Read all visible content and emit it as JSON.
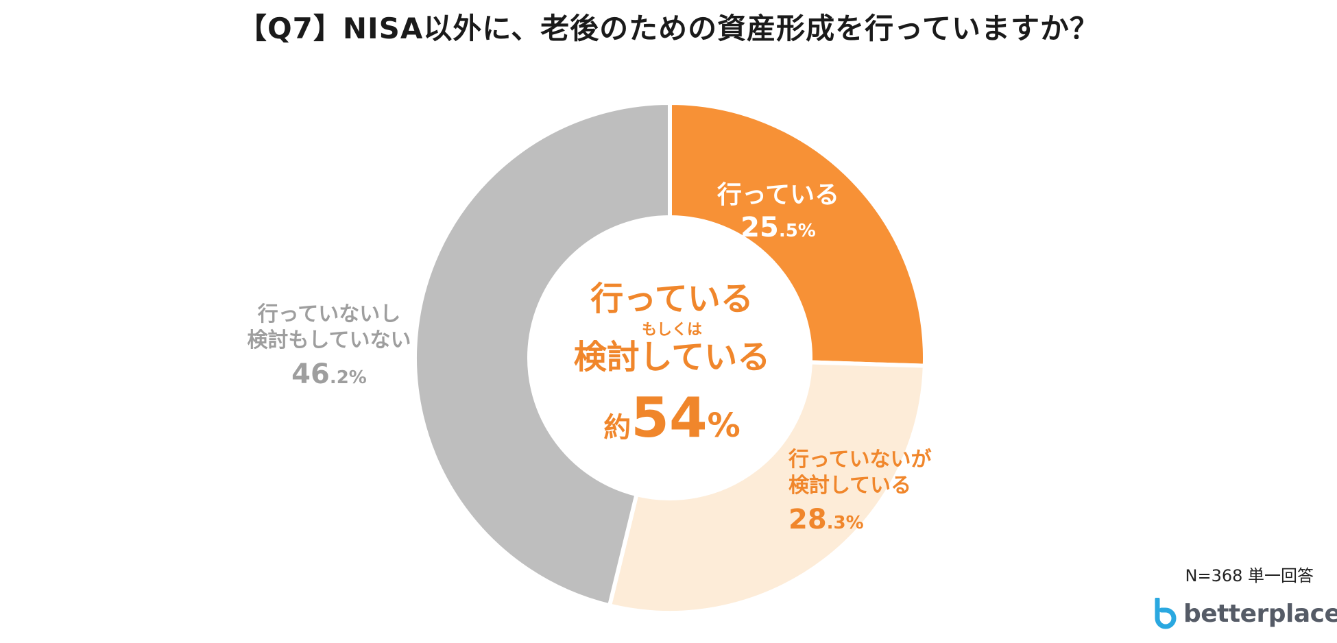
{
  "title": "【Q7】NISA以外に、老後のための資産形成を行っていますか？",
  "chart_data": {
    "type": "pie",
    "donut": true,
    "slices": [
      {
        "label_lines": [
          "行っている"
        ],
        "pct_int": "25",
        "pct_dec": ".5%",
        "value": 25.5,
        "color": "#f79136"
      },
      {
        "label_lines": [
          "行っていないが",
          "検討している"
        ],
        "pct_int": "28",
        "pct_dec": ".3%",
        "value": 28.3,
        "color": "#fdecd8"
      },
      {
        "label_lines": [
          "行っていないし",
          "検討もしていない"
        ],
        "pct_int": "46",
        "pct_dec": ".2%",
        "value": 46.2,
        "color": "#bebebe"
      }
    ],
    "center": {
      "line1": "行っている",
      "line2": "もしくは",
      "line3": "検討している",
      "prefix": "約",
      "number": "54",
      "percent": "%"
    }
  },
  "note": "N=368 単一回答",
  "logo": {
    "text": "betterplace",
    "color": "#2aa8e0"
  }
}
